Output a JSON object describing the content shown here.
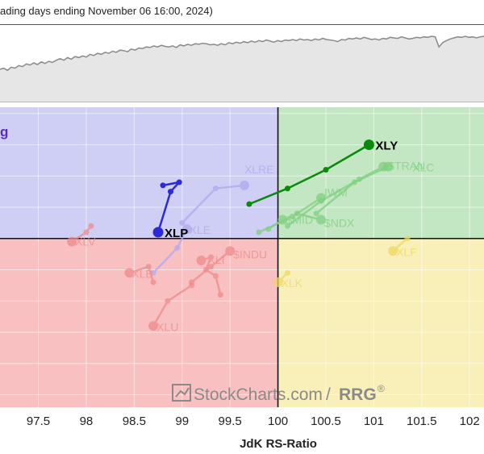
{
  "header": {
    "caption": "ading days ending November 06 16:00, 2024)"
  },
  "quadrant_label_partial": "g",
  "watermark": {
    "text": "StockCharts.com",
    "separator": "/",
    "suffix": "RRG",
    "reg": "®"
  },
  "colors": {
    "improving": "#cfcff5",
    "leading": "#c3e7c3",
    "lagging": "#f8c0c0",
    "weakening": "#f9efb8",
    "xly": "#0a8a0a",
    "xlp": "#2a2ad8",
    "green_faded": "#7fcf7f",
    "red_faded": "#ef8a8a",
    "purple_faded": "#b0a8ee",
    "yellow_faded": "#f0d860",
    "benchmark_line": "#8a8a8a",
    "benchmark_fill": "#e6e6e6"
  },
  "chart_data": {
    "type": "scatter",
    "xlabel": "JdK RS-Ratio",
    "ylabel": "",
    "xlim": [
      97.1,
      102.15
    ],
    "ylim": [
      97.3,
      102.1
    ],
    "x_ticks": [
      "97.5",
      "98",
      "98.5",
      "99",
      "99.5",
      "100",
      "100.5",
      "101",
      "101.5",
      "102"
    ],
    "x_tick_values": [
      97.5,
      98,
      98.5,
      99,
      99.5,
      100,
      100.5,
      101,
      101.5,
      102
    ],
    "grid": true,
    "center": [
      100,
      100
    ],
    "benchmark_trend": [
      0.38,
      0.4,
      0.36,
      0.42,
      0.4,
      0.45,
      0.43,
      0.48,
      0.46,
      0.5,
      0.47,
      0.52,
      0.49,
      0.53,
      0.51,
      0.55,
      0.58,
      0.55,
      0.6,
      0.57,
      0.62,
      0.6,
      0.63,
      0.61,
      0.66,
      0.64,
      0.68,
      0.66,
      0.7,
      0.68,
      0.72,
      0.7,
      0.74,
      0.73,
      0.71,
      0.76,
      0.74,
      0.78,
      0.77,
      0.8,
      0.79,
      0.82,
      0.8,
      0.83,
      0.81,
      0.8,
      0.82,
      0.79,
      0.84,
      0.82,
      0.85,
      0.83,
      0.86,
      0.85,
      0.87,
      0.86,
      0.84,
      0.85,
      0.83,
      0.86,
      0.84,
      0.88,
      0.86,
      0.89,
      0.87,
      0.9,
      0.88,
      0.91,
      0.89,
      0.92,
      0.9,
      0.93,
      0.91,
      0.89,
      0.92,
      0.9,
      0.93,
      0.92,
      0.94,
      0.92,
      0.95,
      0.93,
      0.94,
      0.92,
      0.95,
      0.93,
      0.96,
      0.94,
      0.93,
      0.92,
      0.9,
      0.94,
      0.93,
      0.96,
      0.95,
      0.97,
      0.95,
      0.98,
      0.96,
      0.94,
      0.95,
      0.93,
      0.96,
      0.95,
      0.98,
      0.97,
      0.96,
      0.99,
      0.97,
      0.95,
      0.96,
      0.98,
      0.97,
      0.99,
      0.98,
      1.0,
      0.99,
      0.8,
      0.88,
      0.92,
      0.95,
      0.97,
      0.99,
      0.98,
      1.0,
      0.98,
      0.99,
      0.97,
      0.99,
      1.0
    ],
    "series": [
      {
        "name": "XLY",
        "color": "#0a8a0a",
        "active": true,
        "points": [
          [
            99.7,
            100.55
          ],
          [
            100.1,
            100.8
          ],
          [
            100.5,
            101.1
          ],
          [
            100.95,
            101.5
          ]
        ]
      },
      {
        "name": "XLP",
        "color": "#2a2ad8",
        "active": true,
        "points": [
          [
            98.8,
            100.85
          ],
          [
            98.97,
            100.9
          ],
          [
            98.88,
            100.75
          ],
          [
            98.75,
            100.1
          ]
        ]
      },
      {
        "name": "$TRAN",
        "color": "#7fcf7f",
        "active": false,
        "points": [
          [
            100.1,
            100.2
          ],
          [
            100.45,
            100.6
          ],
          [
            100.85,
            100.95
          ],
          [
            101.1,
            101.15
          ]
        ]
      },
      {
        "name": "XLC",
        "color": "#7fcf7f",
        "active": false,
        "points": [
          [
            100.4,
            100.4
          ],
          [
            100.8,
            100.9
          ],
          [
            101.15,
            101.15
          ]
        ]
      },
      {
        "name": "IWM",
        "color": "#7fcf7f",
        "active": false,
        "points": [
          [
            99.8,
            100.1
          ],
          [
            100.15,
            100.35
          ],
          [
            100.45,
            100.65
          ]
        ]
      },
      {
        "name": "$MID",
        "color": "#7fcf7f",
        "active": false,
        "points": [
          [
            99.9,
            100.15
          ],
          [
            100.05,
            100.3
          ]
        ]
      },
      {
        "name": "$NDX",
        "color": "#7fcf7f",
        "active": false,
        "points": [
          [
            100.2,
            100.4
          ],
          [
            100.45,
            100.3
          ]
        ]
      },
      {
        "name": "XLE",
        "color": "#b0a8ee",
        "active": false,
        "points": [
          [
            98.7,
            99.45
          ],
          [
            98.95,
            99.85
          ],
          [
            99.05,
            100.15
          ]
        ]
      },
      {
        "name": "XLRE",
        "color": "#b0a8ee",
        "active": false,
        "points": [
          [
            99.0,
            100.25
          ],
          [
            99.35,
            100.8
          ],
          [
            99.65,
            100.85
          ]
        ]
      },
      {
        "name": "XLV",
        "color": "#ef8a8a",
        "active": false,
        "points": [
          [
            98.05,
            100.2
          ],
          [
            98.0,
            100.1
          ],
          [
            97.85,
            99.95
          ]
        ]
      },
      {
        "name": "$INDU",
        "color": "#ef8a8a",
        "active": false,
        "points": [
          [
            99.1,
            99.3
          ],
          [
            99.3,
            99.55
          ],
          [
            99.5,
            99.8
          ]
        ]
      },
      {
        "name": "XLI",
        "color": "#ef8a8a",
        "active": false,
        "points": [
          [
            99.4,
            99.1
          ],
          [
            99.35,
            99.4
          ],
          [
            99.25,
            99.5
          ],
          [
            99.3,
            99.7
          ],
          [
            99.2,
            99.65
          ]
        ]
      },
      {
        "name": "XLB",
        "color": "#ef8a8a",
        "active": false,
        "points": [
          [
            98.7,
            99.3
          ],
          [
            98.65,
            99.55
          ],
          [
            98.45,
            99.45
          ]
        ]
      },
      {
        "name": "XLU",
        "color": "#ef8a8a",
        "active": false,
        "points": [
          [
            99.1,
            99.25
          ],
          [
            98.85,
            99.0
          ],
          [
            98.7,
            98.6
          ]
        ]
      },
      {
        "name": "XLK",
        "color": "#f0d860",
        "active": false,
        "points": [
          [
            100.1,
            99.45
          ],
          [
            100.0,
            99.3
          ]
        ]
      },
      {
        "name": "XLF",
        "color": "#f0d860",
        "active": false,
        "points": [
          [
            101.35,
            100.0
          ],
          [
            101.2,
            99.8
          ]
        ]
      }
    ]
  }
}
